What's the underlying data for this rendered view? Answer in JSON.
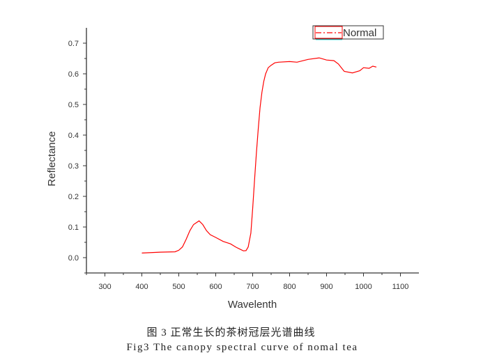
{
  "chart_data": {
    "type": "line",
    "title": "",
    "xlabel": "Wavelenth",
    "ylabel": "Reflectance",
    "xlim": [
      250,
      1150
    ],
    "ylim": [
      -0.05,
      0.75
    ],
    "xticks": [
      300,
      400,
      500,
      600,
      700,
      800,
      900,
      1000,
      1100
    ],
    "yticks": [
      0.0,
      0.1,
      0.2,
      0.3,
      0.4,
      0.5,
      0.6,
      0.7
    ],
    "ytick_labels": [
      "0.0",
      "0.1",
      "0.2",
      "0.3",
      "0.4",
      "0.5",
      "0.6",
      "0.7"
    ],
    "grid": false,
    "legend_placement": "top-right",
    "series": [
      {
        "name": "Normal",
        "color": "#ff0000",
        "x": [
          400,
          450,
          490,
          500,
          510,
          520,
          530,
          540,
          555,
          565,
          575,
          585,
          600,
          620,
          640,
          655,
          665,
          675,
          682,
          688,
          695,
          700,
          705,
          710,
          715,
          720,
          725,
          730,
          735,
          742,
          750,
          760,
          770,
          800,
          820,
          850,
          880,
          900,
          920,
          932,
          940,
          948,
          970,
          990,
          1000,
          1015,
          1025,
          1035
        ],
        "y": [
          0.015,
          0.018,
          0.019,
          0.024,
          0.035,
          0.06,
          0.088,
          0.108,
          0.12,
          0.108,
          0.088,
          0.075,
          0.066,
          0.053,
          0.045,
          0.034,
          0.028,
          0.022,
          0.023,
          0.035,
          0.08,
          0.16,
          0.25,
          0.34,
          0.42,
          0.49,
          0.54,
          0.575,
          0.6,
          0.62,
          0.628,
          0.636,
          0.638,
          0.64,
          0.638,
          0.647,
          0.652,
          0.645,
          0.643,
          0.632,
          0.62,
          0.608,
          0.603,
          0.61,
          0.62,
          0.618,
          0.625,
          0.622
        ]
      }
    ]
  },
  "caption": {
    "chinese": "图 3  正常生长的茶树冠层光谱曲线",
    "english": "Fig3  The canopy spectral curve of nomal tea"
  }
}
